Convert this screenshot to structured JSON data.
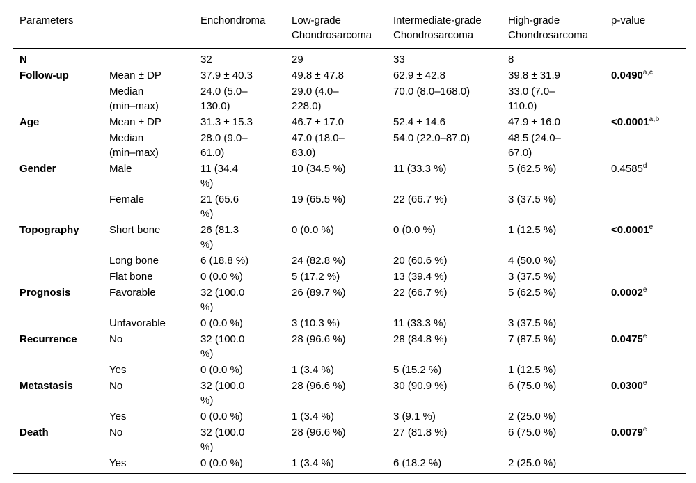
{
  "colors": {
    "text": "#000000",
    "background": "#ffffff",
    "rule": "#000000"
  },
  "table": {
    "header": {
      "parameters": "Parameters",
      "columns": [
        "Enchondroma",
        "Low-grade\nChondrosarcoma",
        "Intermediate-grade\nChondrosarcoma",
        "High-grade\nChondrosarcoma",
        "p-value"
      ]
    },
    "rows": [
      {
        "param": "N",
        "sub": "",
        "cells": [
          "32",
          "29",
          "33",
          "8"
        ],
        "p": null
      },
      {
        "param": "Follow-up",
        "sub": "Mean ± DP",
        "cells": [
          "37.9 ± 40.3",
          "49.8 ± 47.8",
          "62.9 ± 42.8",
          "39.8 ± 31.9"
        ],
        "p": {
          "value": "0.0490",
          "sup": "a,c",
          "bold": true
        }
      },
      {
        "param": "",
        "sub": "Median\n(min–max)",
        "cells": [
          "24.0 (5.0–\n130.0)",
          "29.0 (4.0–\n228.0)",
          "70.0 (8.0–168.0)",
          "33.0 (7.0–\n110.0)"
        ],
        "p": null
      },
      {
        "param": "Age",
        "sub": "Mean ± DP",
        "cells": [
          "31.3 ± 15.3",
          "46.7 ± 17.0",
          "52.4 ± 14.6",
          "47.9 ± 16.0"
        ],
        "p": {
          "value": "<0.0001",
          "sup": "a,b",
          "bold": true
        }
      },
      {
        "param": "",
        "sub": "Median\n(min–max)",
        "cells": [
          "28.0 (9.0–\n61.0)",
          "47.0 (18.0–\n83.0)",
          "54.0 (22.0–87.0)",
          "48.5 (24.0–\n67.0)"
        ],
        "p": null
      },
      {
        "param": "Gender",
        "sub": "Male",
        "cells": [
          "11 (34.4\n%)",
          "10 (34.5 %)",
          "11 (33.3 %)",
          "5 (62.5 %)"
        ],
        "p": {
          "value": "0.4585",
          "sup": "d",
          "bold": false
        }
      },
      {
        "param": "",
        "sub": "Female",
        "cells": [
          "21 (65.6\n%)",
          "19 (65.5 %)",
          "22 (66.7 %)",
          "3 (37.5 %)"
        ],
        "p": null
      },
      {
        "param": "Topography",
        "sub": "Short bone",
        "cells": [
          "26 (81.3\n%)",
          "0 (0.0 %)",
          "0 (0.0 %)",
          "1 (12.5 %)"
        ],
        "p": {
          "value": "<0.0001",
          "sup": "e",
          "bold": true
        }
      },
      {
        "param": "",
        "sub": "Long bone",
        "cells": [
          "6 (18.8 %)",
          "24 (82.8 %)",
          "20 (60.6 %)",
          "4 (50.0 %)"
        ],
        "p": null
      },
      {
        "param": "",
        "sub": "Flat bone",
        "cells": [
          "0 (0.0 %)",
          "5 (17.2 %)",
          "13 (39.4 %)",
          "3 (37.5 %)"
        ],
        "p": null
      },
      {
        "param": "Prognosis",
        "sub": "Favorable",
        "cells": [
          "32 (100.0\n%)",
          "26 (89.7 %)",
          "22 (66.7 %)",
          "5 (62.5 %)"
        ],
        "p": {
          "value": "0.0002",
          "sup": "e",
          "bold": true
        }
      },
      {
        "param": "",
        "sub": "Unfavorable",
        "cells": [
          "0 (0.0 %)",
          "3 (10.3 %)",
          "11 (33.3 %)",
          "3 (37.5 %)"
        ],
        "p": null
      },
      {
        "param": "Recurrence",
        "sub": "No",
        "cells": [
          "32 (100.0\n%)",
          "28 (96.6 %)",
          "28 (84.8 %)",
          "7 (87.5 %)"
        ],
        "p": {
          "value": "0.0475",
          "sup": "e",
          "bold": true
        }
      },
      {
        "param": "",
        "sub": "Yes",
        "cells": [
          "0 (0.0 %)",
          "1 (3.4 %)",
          "5 (15.2 %)",
          "1 (12.5 %)"
        ],
        "p": null
      },
      {
        "param": "Metastasis",
        "sub": "No",
        "cells": [
          "32 (100.0\n%)",
          "28 (96.6 %)",
          "30 (90.9 %)",
          "6 (75.0 %)"
        ],
        "p": {
          "value": "0.0300",
          "sup": "e",
          "bold": true
        }
      },
      {
        "param": "",
        "sub": "Yes",
        "cells": [
          "0 (0.0 %)",
          "1 (3.4 %)",
          "3 (9.1 %)",
          "2 (25.0 %)"
        ],
        "p": null
      },
      {
        "param": "Death",
        "sub": "No",
        "cells": [
          "32 (100.0\n%)",
          "28 (96.6 %)",
          "27 (81.8 %)",
          "6 (75.0 %)"
        ],
        "p": {
          "value": "0.0079",
          "sup": "e",
          "bold": true
        }
      },
      {
        "param": "",
        "sub": "Yes",
        "cells": [
          "0 (0.0 %)",
          "1 (3.4 %)",
          "6 (18.2 %)",
          "2 (25.0 %)"
        ],
        "p": null
      }
    ]
  }
}
